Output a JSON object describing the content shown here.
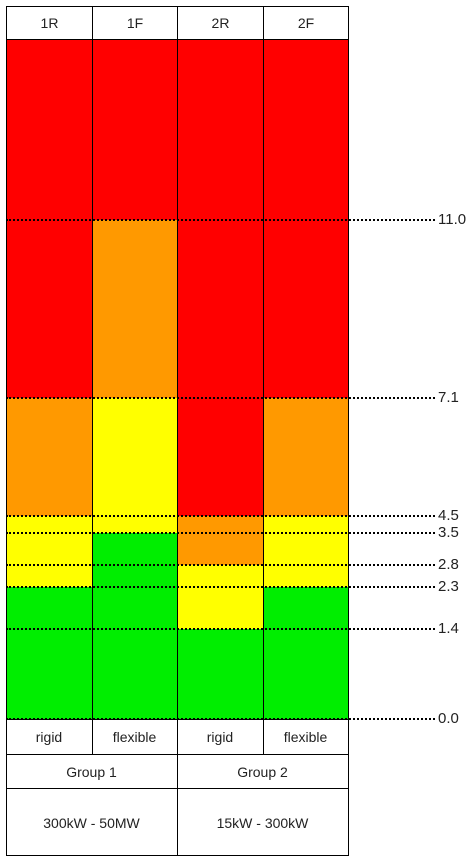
{
  "columns": [
    {
      "code": "1R",
      "type": "rigid"
    },
    {
      "code": "1F",
      "type": "flexible"
    },
    {
      "code": "2R",
      "type": "rigid"
    },
    {
      "code": "2F",
      "type": "flexible"
    }
  ],
  "groups": [
    {
      "name": "Group 1",
      "range": "300kW - 50MW"
    },
    {
      "name": "Group 2",
      "range": "15kW - 300kW"
    }
  ],
  "levels": [
    "11.0",
    "7.1",
    "4.5",
    "3.5",
    "2.8",
    "2.3",
    "1.4",
    "0.0"
  ],
  "colors": {
    "red": "#ff0000",
    "orange": "#ff9900",
    "yellow": "#ffff00",
    "green": "#00ee00"
  },
  "zones": {
    "1R": [
      {
        "from": 0.0,
        "to": 2.3,
        "color": "green"
      },
      {
        "from": 2.3,
        "to": 4.5,
        "color": "yellow"
      },
      {
        "from": 4.5,
        "to": 7.1,
        "color": "orange"
      },
      {
        "from": 7.1,
        "to": 15.0,
        "color": "red"
      }
    ],
    "1F": [
      {
        "from": 0.0,
        "to": 3.5,
        "color": "green"
      },
      {
        "from": 3.5,
        "to": 7.1,
        "color": "yellow"
      },
      {
        "from": 7.1,
        "to": 11.0,
        "color": "orange"
      },
      {
        "from": 11.0,
        "to": 15.0,
        "color": "red"
      }
    ],
    "2R": [
      {
        "from": 0.0,
        "to": 1.4,
        "color": "green"
      },
      {
        "from": 1.4,
        "to": 2.8,
        "color": "yellow"
      },
      {
        "from": 2.8,
        "to": 4.5,
        "color": "orange"
      },
      {
        "from": 4.5,
        "to": 15.0,
        "color": "red"
      }
    ],
    "2F": [
      {
        "from": 0.0,
        "to": 2.3,
        "color": "green"
      },
      {
        "from": 2.3,
        "to": 4.5,
        "color": "yellow"
      },
      {
        "from": 4.5,
        "to": 7.1,
        "color": "orange"
      },
      {
        "from": 7.1,
        "to": 15.0,
        "color": "red"
      }
    ]
  }
}
